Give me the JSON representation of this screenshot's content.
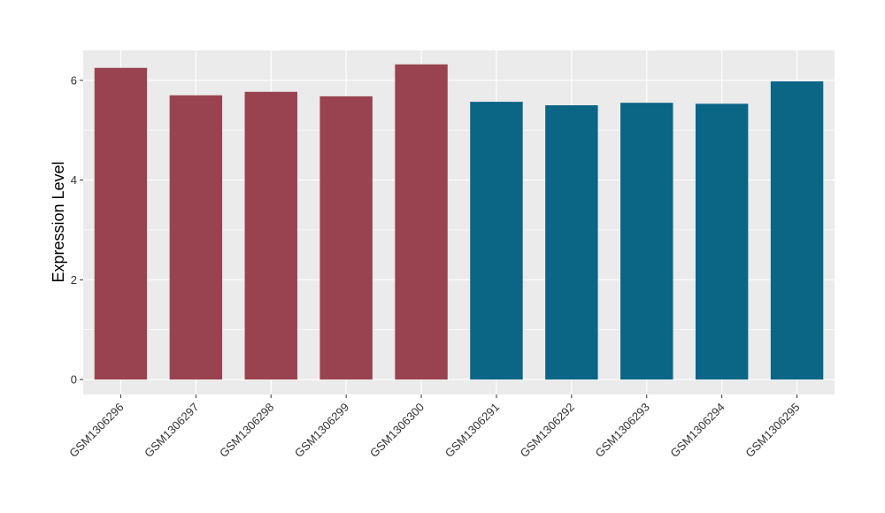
{
  "chart_data": {
    "type": "bar",
    "title": "",
    "xlabel": "",
    "ylabel": "Expression Level",
    "ylim": [
      -0.3,
      6.6
    ],
    "yticks": [
      0,
      2,
      4,
      6
    ],
    "grid": true,
    "legend": "none",
    "categories": [
      "GSM1306296",
      "GSM1306297",
      "GSM1306298",
      "GSM1306299",
      "GSM1306300",
      "GSM1306291",
      "GSM1306292",
      "GSM1306293",
      "GSM1306294",
      "GSM1306295"
    ],
    "values": [
      6.25,
      5.7,
      5.77,
      5.68,
      6.32,
      5.57,
      5.5,
      5.55,
      5.53,
      5.98
    ],
    "bar_colors": [
      "#9a4350",
      "#9a4350",
      "#9a4350",
      "#9a4350",
      "#9a4350",
      "#0b6585",
      "#0b6585",
      "#0b6585",
      "#0b6585",
      "#0b6585"
    ],
    "panel_color": "#ebebeb",
    "grid_color": "#ffffff"
  }
}
